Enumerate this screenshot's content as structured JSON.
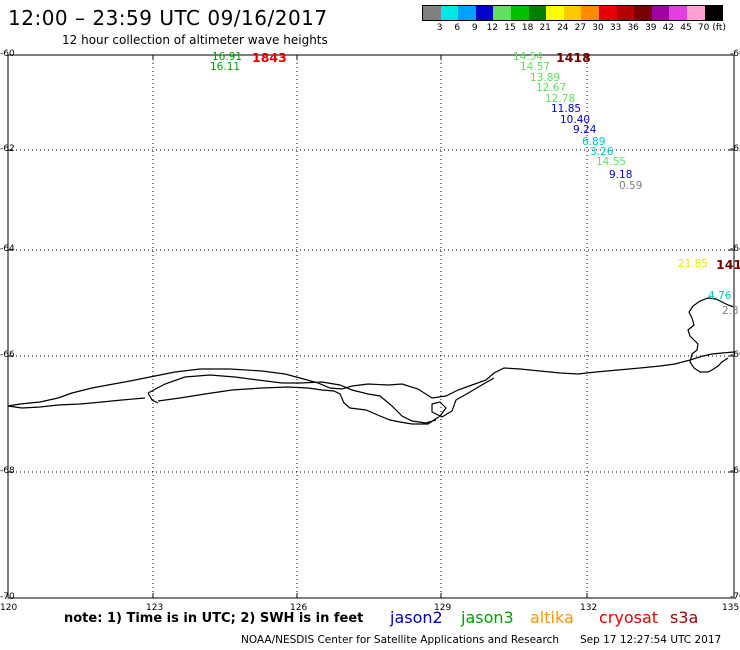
{
  "header": {
    "title": "12:00 – 23:59 UTC 09/16/2017",
    "subtitle": "12 hour collection of altimeter wave heights"
  },
  "colorbar": {
    "colors": [
      "#808080",
      "#00e6e6",
      "#00a0ff",
      "#0000c8",
      "#60e060",
      "#00c000",
      "#008000",
      "#ffff00",
      "#ffc800",
      "#ff8c00",
      "#e60000",
      "#b40000",
      "#780000",
      "#a000a0",
      "#e040e0",
      "#ffa0d0",
      "#000000"
    ],
    "labels": [
      "3",
      "6",
      "9",
      "12",
      "15",
      "18",
      "21",
      "24",
      "27",
      "30",
      "33",
      "36",
      "39",
      "42",
      "45",
      "70",
      "(ft)"
    ]
  },
  "axes": {
    "lat_labels": [
      "-60",
      "-62",
      "-64",
      "-66",
      "-68",
      "-70"
    ],
    "lon_labels": [
      "120",
      "123",
      "126",
      "129",
      "132",
      "135"
    ],
    "lat_range": [
      -70,
      -60
    ],
    "lon_range": [
      120,
      135
    ]
  },
  "tracks": [
    {
      "id": "track-left",
      "time": "1843",
      "time_color": "#e60000",
      "points": [
        {
          "value": "16.91",
          "color": "#00a000"
        },
        {
          "value": "16.11",
          "color": "#00a000"
        }
      ]
    },
    {
      "id": "track-center",
      "time": "1418",
      "time_color": "#780000",
      "points": [
        {
          "value": "14.54",
          "color": "#60e060"
        },
        {
          "value": "14.57",
          "color": "#60e060"
        },
        {
          "value": "13.89",
          "color": "#60e060"
        },
        {
          "value": "12.67",
          "color": "#60e060"
        },
        {
          "value": "12.78",
          "color": "#60e060"
        },
        {
          "value": "11.85",
          "color": "#0000c8"
        },
        {
          "value": "10.40",
          "color": "#0000c8"
        },
        {
          "value": "9.24",
          "color": "#0000c8"
        },
        {
          "value": "6.89",
          "color": "#00c8c8"
        },
        {
          "value": "3.26",
          "color": "#00c8c8"
        },
        {
          "value": "14.55",
          "color": "#60e060"
        },
        {
          "value": "9.18",
          "color": "#0000c8"
        },
        {
          "value": "0.59",
          "color": "#808080"
        }
      ]
    },
    {
      "id": "track-right",
      "time": "141",
      "time_color": "#780000",
      "points": [
        {
          "value": "21.85",
          "color": "#e6e600"
        },
        {
          "value": "4.76",
          "color": "#00c8c8"
        },
        {
          "value": "2.3",
          "color": "#808080"
        }
      ]
    }
  ],
  "footer": {
    "note": "note: 1) Time is in UTC; 2) SWH is in feet",
    "satellites": [
      {
        "name": "jason2",
        "color": "#0000c8"
      },
      {
        "name": "jason3",
        "color": "#00a000"
      },
      {
        "name": "altika",
        "color": "#ff9600"
      },
      {
        "name": "cryosat",
        "color": "#e60000"
      },
      {
        "name": "s3a",
        "color": "#a00000"
      }
    ],
    "credit": "NOAA/NESDIS Center for Satellite Applications and Research",
    "timestamp": "Sep 17 12:27:54 UTC 2017"
  }
}
